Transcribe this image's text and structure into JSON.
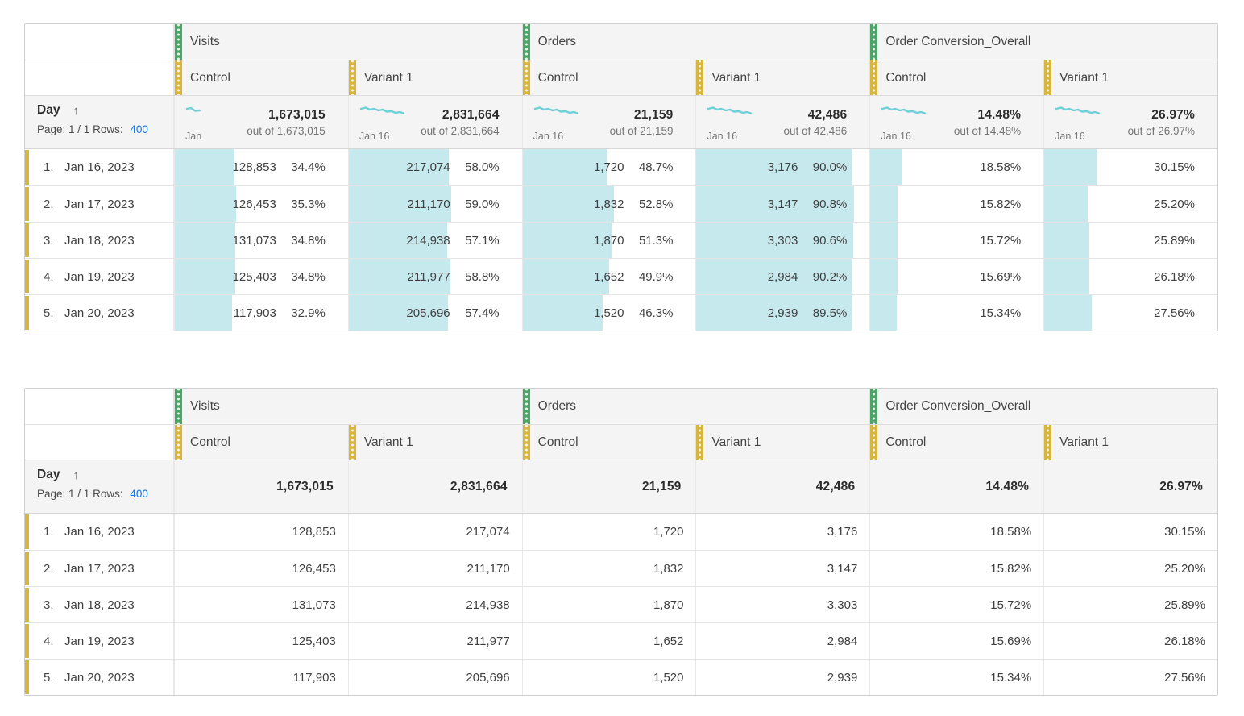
{
  "colors": {
    "metric_rail": "#4da469",
    "segment_rail": "#d8b53c",
    "conditional_bar": "#c6e9ee",
    "sparkline": "#6fd0d8",
    "link_blue": "#1473e6",
    "header_bg": "#f4f4f4"
  },
  "tables": [
    {
      "metric_groups": [
        "Visits",
        "Orders",
        "Order Conversion_Overall"
      ],
      "segments": [
        "Control",
        "Variant 1",
        "Control",
        "Variant 1",
        "Control",
        "Variant 1"
      ],
      "day": {
        "label": "Day",
        "sort_icon": "↑",
        "page_info": "Page: 1 / 1",
        "rows_label": "Rows:",
        "rows_value": "400"
      },
      "totals": [
        {
          "spark_label": "Jan",
          "value": "1,673,015",
          "out_of": "out of 1,673,015"
        },
        {
          "spark_label": "Jan 16",
          "value": "2,831,664",
          "out_of": "out of 2,831,664"
        },
        {
          "spark_label": "Jan 16",
          "value": "21,159",
          "out_of": "out of 21,159"
        },
        {
          "spark_label": "Jan 16",
          "value": "42,486",
          "out_of": "out of 42,486"
        },
        {
          "spark_label": "Jan 16",
          "value": "14.48%",
          "out_of": "out of 14.48%"
        },
        {
          "spark_label": "Jan 16",
          "value": "26.97%",
          "out_of": "out of 26.97%"
        }
      ],
      "rows": [
        {
          "index": "1.",
          "date": "Jan 16, 2023",
          "cells": [
            {
              "text": "128,853",
              "pct": "34.4%",
              "bar": 34.4
            },
            {
              "text": "217,074",
              "pct": "58.0%",
              "bar": 58.0
            },
            {
              "text": "1,720",
              "pct": "48.7%",
              "bar": 48.7
            },
            {
              "text": "3,176",
              "pct": "90.0%",
              "bar": 90.0
            },
            {
              "text": "18.58%",
              "bar": 18.58
            },
            {
              "text": "30.15%",
              "bar": 30.15
            }
          ]
        },
        {
          "index": "2.",
          "date": "Jan 17, 2023",
          "cells": [
            {
              "text": "126,453",
              "pct": "35.3%",
              "bar": 35.3
            },
            {
              "text": "211,170",
              "pct": "59.0%",
              "bar": 59.0
            },
            {
              "text": "1,832",
              "pct": "52.8%",
              "bar": 52.8
            },
            {
              "text": "3,147",
              "pct": "90.8%",
              "bar": 90.8
            },
            {
              "text": "15.82%",
              "bar": 15.82
            },
            {
              "text": "25.20%",
              "bar": 25.2
            }
          ]
        },
        {
          "index": "3.",
          "date": "Jan 18, 2023",
          "cells": [
            {
              "text": "131,073",
              "pct": "34.8%",
              "bar": 34.8
            },
            {
              "text": "214,938",
              "pct": "57.1%",
              "bar": 57.1
            },
            {
              "text": "1,870",
              "pct": "51.3%",
              "bar": 51.3
            },
            {
              "text": "3,303",
              "pct": "90.6%",
              "bar": 90.6
            },
            {
              "text": "15.72%",
              "bar": 15.72
            },
            {
              "text": "25.89%",
              "bar": 25.89
            }
          ]
        },
        {
          "index": "4.",
          "date": "Jan 19, 2023",
          "cells": [
            {
              "text": "125,403",
              "pct": "34.8%",
              "bar": 34.8
            },
            {
              "text": "211,977",
              "pct": "58.8%",
              "bar": 58.8
            },
            {
              "text": "1,652",
              "pct": "49.9%",
              "bar": 49.9
            },
            {
              "text": "2,984",
              "pct": "90.2%",
              "bar": 90.2
            },
            {
              "text": "15.69%",
              "bar": 15.69
            },
            {
              "text": "26.18%",
              "bar": 26.18
            }
          ]
        },
        {
          "index": "5.",
          "date": "Jan 20, 2023",
          "cells": [
            {
              "text": "117,903",
              "pct": "32.9%",
              "bar": 32.9
            },
            {
              "text": "205,696",
              "pct": "57.4%",
              "bar": 57.4
            },
            {
              "text": "1,520",
              "pct": "46.3%",
              "bar": 46.3
            },
            {
              "text": "2,939",
              "pct": "89.5%",
              "bar": 89.5
            },
            {
              "text": "15.34%",
              "bar": 15.34
            },
            {
              "text": "27.56%",
              "bar": 27.56
            }
          ]
        }
      ]
    },
    {
      "metric_groups": [
        "Visits",
        "Orders",
        "Order Conversion_Overall"
      ],
      "segments": [
        "Control",
        "Variant 1",
        "Control",
        "Variant 1",
        "Control",
        "Variant 1"
      ],
      "day": {
        "label": "Day",
        "sort_icon": "↑",
        "page_info": "Page: 1 / 1",
        "rows_label": "Rows:",
        "rows_value": "400"
      },
      "totals": [
        {
          "value": "1,673,015"
        },
        {
          "value": "2,831,664"
        },
        {
          "value": "21,159"
        },
        {
          "value": "42,486"
        },
        {
          "value": "14.48%"
        },
        {
          "value": "26.97%"
        }
      ],
      "rows": [
        {
          "index": "1.",
          "date": "Jan 16, 2023",
          "cells": [
            {
              "text": "128,853"
            },
            {
              "text": "217,074"
            },
            {
              "text": "1,720"
            },
            {
              "text": "3,176"
            },
            {
              "text": "18.58%"
            },
            {
              "text": "30.15%"
            }
          ]
        },
        {
          "index": "2.",
          "date": "Jan 17, 2023",
          "cells": [
            {
              "text": "126,453"
            },
            {
              "text": "211,170"
            },
            {
              "text": "1,832"
            },
            {
              "text": "3,147"
            },
            {
              "text": "15.82%"
            },
            {
              "text": "25.20%"
            }
          ]
        },
        {
          "index": "3.",
          "date": "Jan 18, 2023",
          "cells": [
            {
              "text": "131,073"
            },
            {
              "text": "214,938"
            },
            {
              "text": "1,870"
            },
            {
              "text": "3,303"
            },
            {
              "text": "15.72%"
            },
            {
              "text": "25.89%"
            }
          ]
        },
        {
          "index": "4.",
          "date": "Jan 19, 2023",
          "cells": [
            {
              "text": "125,403"
            },
            {
              "text": "211,977"
            },
            {
              "text": "1,652"
            },
            {
              "text": "2,984"
            },
            {
              "text": "15.69%"
            },
            {
              "text": "26.18%"
            }
          ]
        },
        {
          "index": "5.",
          "date": "Jan 20, 2023",
          "cells": [
            {
              "text": "117,903"
            },
            {
              "text": "205,696"
            },
            {
              "text": "1,520"
            },
            {
              "text": "2,939"
            },
            {
              "text": "15.34%"
            },
            {
              "text": "27.56%"
            }
          ]
        }
      ]
    }
  ]
}
